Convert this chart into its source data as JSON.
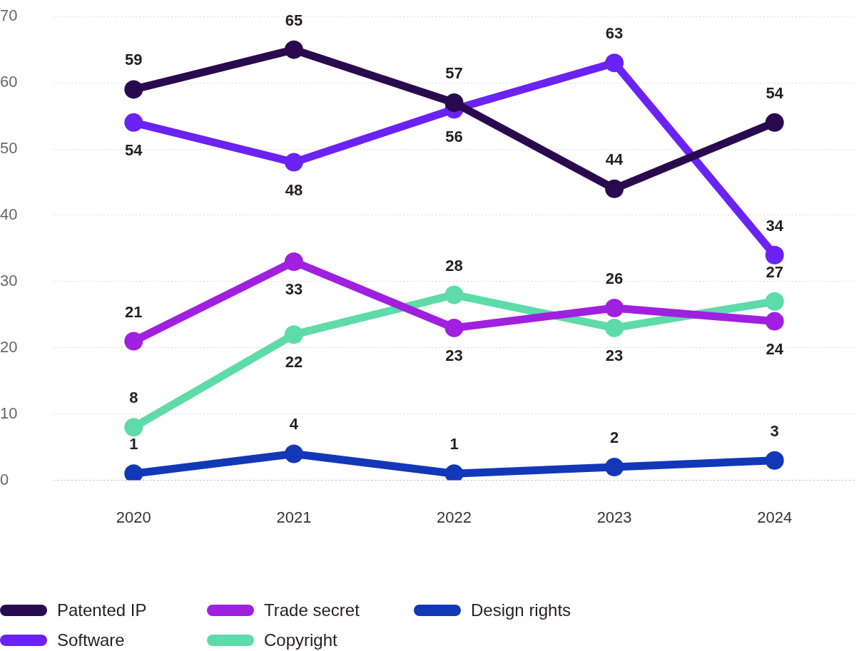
{
  "chart_data": {
    "type": "line",
    "categories": [
      "2020",
      "2021",
      "2022",
      "2023",
      "2024"
    ],
    "series": [
      {
        "name": "Patented IP",
        "color": "#2a0a4f",
        "values": [
          59,
          65,
          57,
          44,
          54
        ]
      },
      {
        "name": "Software",
        "color": "#6a22f5",
        "values": [
          54,
          48,
          56,
          63,
          34
        ]
      },
      {
        "name": "Trade secret",
        "color": "#a020e0",
        "values": [
          21,
          33,
          23,
          26,
          24
        ]
      },
      {
        "name": "Copyright",
        "color": "#5ddba8",
        "values": [
          8,
          22,
          28,
          23,
          27
        ]
      },
      {
        "name": "Design rights",
        "color": "#1238b8",
        "values": [
          1,
          4,
          1,
          2,
          3
        ]
      }
    ],
    "ylim": [
      0,
      70
    ],
    "yticks": [
      0,
      10,
      20,
      30,
      40,
      50,
      60,
      70
    ],
    "grid": "y",
    "legend": "bottom left",
    "marker": "circle",
    "line_style": "solid",
    "data_labels": true
  }
}
